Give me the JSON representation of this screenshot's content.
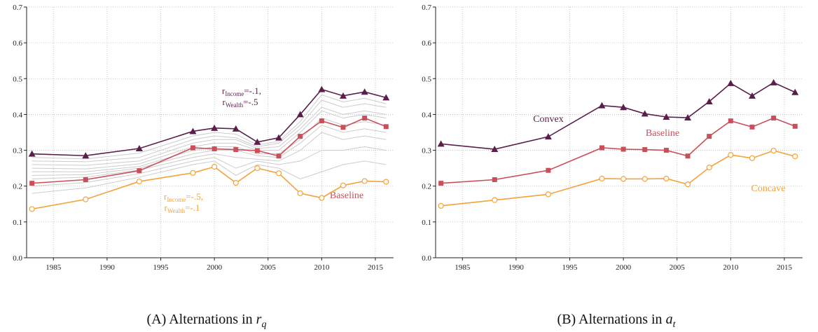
{
  "chart_data": [
    {
      "type": "line",
      "caption": {
        "label": "(A)",
        "text": "Alternations in",
        "symbol": "r",
        "sub": "q"
      },
      "x": [
        1983,
        1988,
        1993,
        1998,
        2000,
        2002,
        2004,
        2006,
        2008,
        2010,
        2012,
        2014,
        2016
      ],
      "xlim": [
        1982.5,
        2016.7
      ],
      "xticks": [
        1985,
        1990,
        1995,
        2000,
        2005,
        2010,
        2015
      ],
      "ylim": [
        0,
        0.7
      ],
      "yticks": [
        {
          "value": 0,
          "label": "0.0"
        },
        0.1,
        0.2,
        0.3,
        0.4,
        0.5,
        0.6,
        0.7
      ],
      "grid": true,
      "series": [
        {
          "color": "#cccccc",
          "values": [
            0.27,
            0.268,
            0.28,
            0.33,
            0.34,
            0.335,
            0.31,
            0.32,
            0.37,
            0.44,
            0.42,
            0.43,
            0.42
          ]
        },
        {
          "color": "#cccccc",
          "values": [
            0.26,
            0.258,
            0.27,
            0.32,
            0.33,
            0.33,
            0.305,
            0.31,
            0.36,
            0.42,
            0.4,
            0.41,
            0.4
          ]
        },
        {
          "color": "#cccccc",
          "values": [
            0.25,
            0.248,
            0.262,
            0.31,
            0.32,
            0.32,
            0.3,
            0.3,
            0.35,
            0.41,
            0.39,
            0.4,
            0.39
          ]
        },
        {
          "color": "#cccccc",
          "values": [
            0.24,
            0.24,
            0.255,
            0.3,
            0.31,
            0.31,
            0.29,
            0.29,
            0.33,
            0.39,
            0.37,
            0.38,
            0.37
          ]
        },
        {
          "color": "#cccccc",
          "values": [
            0.23,
            0.232,
            0.25,
            0.29,
            0.3,
            0.3,
            0.285,
            0.28,
            0.32,
            0.37,
            0.35,
            0.36,
            0.35
          ]
        },
        {
          "color": "#cccccc",
          "values": [
            0.22,
            0.225,
            0.245,
            0.28,
            0.29,
            0.28,
            0.275,
            0.27,
            0.3,
            0.35,
            0.33,
            0.34,
            0.33
          ]
        },
        {
          "color": "#cccccc",
          "values": [
            0.2,
            0.21,
            0.235,
            0.27,
            0.28,
            0.25,
            0.27,
            0.26,
            0.27,
            0.3,
            0.3,
            0.31,
            0.3
          ]
        },
        {
          "color": "#cccccc",
          "values": [
            0.18,
            0.195,
            0.225,
            0.26,
            0.27,
            0.23,
            0.26,
            0.25,
            0.22,
            0.24,
            0.26,
            0.27,
            0.26
          ]
        },
        {
          "color": "#cccccc",
          "values": [
            0.28,
            0.276,
            0.292,
            0.34,
            0.35,
            0.345,
            0.315,
            0.325,
            0.38,
            0.455,
            0.435,
            0.445,
            0.43
          ]
        },
        {
          "color": "#5a1e4a",
          "marker": "triangle",
          "values": [
            0.29,
            0.285,
            0.305,
            0.353,
            0.362,
            0.36,
            0.323,
            0.335,
            0.4,
            0.47,
            0.452,
            0.463,
            0.447
          ]
        },
        {
          "name": "Baseline",
          "color": "#c9505a",
          "marker": "square",
          "values": [
            0.208,
            0.218,
            0.243,
            0.307,
            0.304,
            0.302,
            0.299,
            0.284,
            0.339,
            0.382,
            0.364,
            0.39,
            0.366
          ]
        },
        {
          "color": "#f4a23a",
          "marker": "circle",
          "values": [
            0.136,
            0.163,
            0.213,
            0.237,
            0.254,
            0.209,
            0.25,
            0.236,
            0.18,
            0.167,
            0.202,
            0.214,
            0.212
          ]
        }
      ],
      "annotations": [
        {
          "color": "#5a1e4a",
          "lines": [
            {
              "base": "r",
              "sub": "Income",
              "rest": "=-.1,"
            },
            {
              "base": "r",
              "sub": "Wealth",
              "rest": "=-.5"
            }
          ]
        },
        {
          "color": "#f4a23a",
          "lines": [
            {
              "base": "r",
              "sub": "Income",
              "rest": "=-.5,"
            },
            {
              "base": "r",
              "sub": "Wealth",
              "rest": "=-.1"
            }
          ]
        }
      ]
    },
    {
      "type": "line",
      "caption": {
        "label": "(B)",
        "text": "Alternations in",
        "symbol": "a",
        "sub": "t"
      },
      "x": [
        1983,
        1988,
        1993,
        1998,
        2000,
        2002,
        2004,
        2006,
        2008,
        2010,
        2012,
        2014,
        2016
      ],
      "xlim": [
        1982.5,
        2016.7
      ],
      "xticks": [
        1985,
        1990,
        1995,
        2000,
        2005,
        2010,
        2015
      ],
      "ylim": [
        0,
        0.7
      ],
      "yticks": [
        {
          "value": 0,
          "label": "0.0"
        },
        0.1,
        0.2,
        0.3,
        0.4,
        0.5,
        0.6,
        0.7
      ],
      "grid": true,
      "series": [
        {
          "name": "Convex",
          "color": "#5a1e4a",
          "marker": "triangle",
          "values": [
            0.318,
            0.303,
            0.338,
            0.425,
            0.42,
            0.402,
            0.393,
            0.391,
            0.436,
            0.487,
            0.452,
            0.489,
            0.462
          ]
        },
        {
          "name": "Baseline",
          "color": "#c9505a",
          "marker": "square",
          "values": [
            0.208,
            0.218,
            0.244,
            0.307,
            0.303,
            0.302,
            0.3,
            0.284,
            0.339,
            0.382,
            0.365,
            0.39,
            0.367
          ]
        },
        {
          "name": "Concave",
          "color": "#f4a23a",
          "marker": "circle",
          "values": [
            0.145,
            0.161,
            0.177,
            0.221,
            0.22,
            0.22,
            0.221,
            0.205,
            0.252,
            0.287,
            0.278,
            0.299,
            0.283
          ]
        }
      ]
    }
  ]
}
